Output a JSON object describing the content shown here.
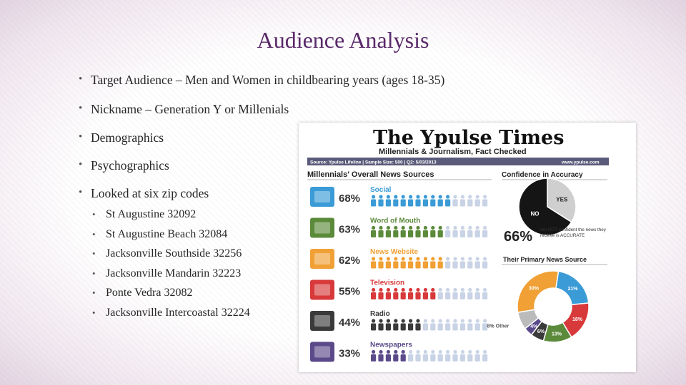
{
  "slide": {
    "title": "Audience Analysis",
    "bullets": [
      "Target Audience – Men and Women in childbearing years (ages 18-35)",
      "Nickname – Generation Y or Millenials",
      "Demographics",
      "Psychographics",
      "Looked at six zip codes"
    ],
    "zip_codes": [
      "St Augustine 32092",
      "St Augustine Beach 32084",
      "Jacksonville Southside 32256",
      "Jacksonville Mandarin 32223",
      "Ponte Vedra 32082",
      "Jacksonville Intercoastal 32224"
    ]
  },
  "infographic": {
    "masthead": "The Ypulse Times",
    "subtitle": "Millennials & Journalism, Fact Checked",
    "source_line": "Source: Ypulse Lifeline | Sample Size: 500 | Q2: 5/03/2013",
    "website": "www.ypulse.com",
    "sources_heading": "Millennials' Overall News Sources",
    "sources": [
      {
        "label": "Social",
        "percent_label": "68%",
        "value": 68,
        "color": "#3b9bd6",
        "icon": "twitter-bird-icon"
      },
      {
        "label": "Word of Mouth",
        "percent_label": "63%",
        "value": 63,
        "color": "#5b8a3a",
        "icon": "people-talking-icon"
      },
      {
        "label": "News Website",
        "percent_label": "62%",
        "value": 62,
        "color": "#f0a034",
        "icon": "at-sign-icon"
      },
      {
        "label": "Television",
        "percent_label": "55%",
        "value": 55,
        "color": "#d8393a",
        "icon": "television-icon"
      },
      {
        "label": "Radio",
        "percent_label": "44%",
        "value": 44,
        "color": "#3a3a3a",
        "icon": "radio-icon"
      },
      {
        "label": "Newspapers",
        "percent_label": "33%",
        "value": 33,
        "color": "#5b4a8a",
        "icon": "newspaper-icon"
      }
    ],
    "confidence_heading": "Confidence in Accuracy",
    "confidence": {
      "yes_label": "YES",
      "no_label": "NO",
      "yes_value": 34,
      "no_value": 66,
      "stat": "66%",
      "stat_text": "are NOT confident the news they receive is ACCURATE"
    },
    "primary_heading": "Their Primary News Source",
    "primary_sources": [
      {
        "label": "21%",
        "value": 21,
        "color": "#3b9bd6"
      },
      {
        "label": "18%",
        "value": 18,
        "color": "#d8393a"
      },
      {
        "label": "13%",
        "value": 13,
        "color": "#5b8a3a"
      },
      {
        "label": "6%",
        "value": 6,
        "color": "#3a3a3a"
      },
      {
        "label": "4%",
        "value": 4,
        "color": "#5b4a8a"
      },
      {
        "label": "8% Other",
        "value": 8,
        "color": "#bbbbbb"
      },
      {
        "label": "30%",
        "value": 30,
        "color": "#f0a034"
      }
    ]
  }
}
